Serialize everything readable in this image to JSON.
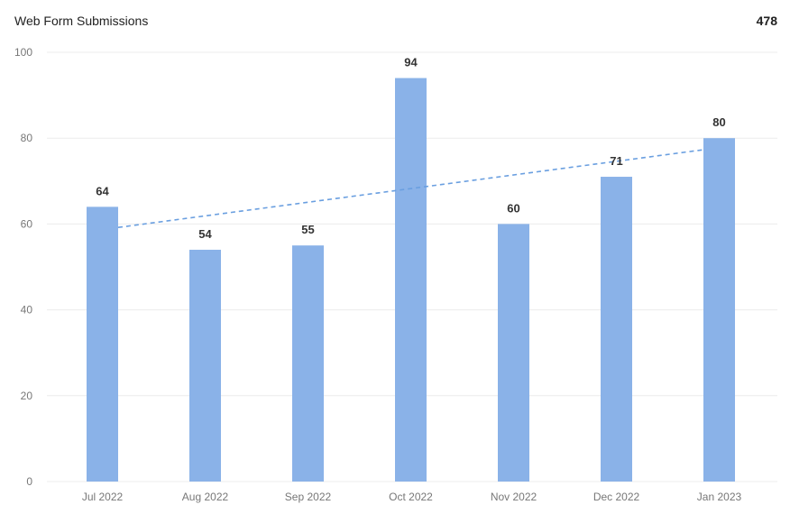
{
  "header": {
    "title": "Web Form Submissions",
    "total": "478"
  },
  "colors": {
    "bar": "#8ab2e8",
    "trend": "#6a9fe0",
    "grid": "#ececec",
    "axis_text": "#777777",
    "label_text": "#333333"
  },
  "chart_data": {
    "type": "bar",
    "title": "Web Form Submissions",
    "categories": [
      "Jul 2022",
      "Aug 2022",
      "Sep 2022",
      "Oct 2022",
      "Nov 2022",
      "Dec 2022",
      "Jan 2023"
    ],
    "values": [
      64,
      54,
      55,
      94,
      60,
      71,
      80
    ],
    "data_labels": [
      "64",
      "54",
      "55",
      "94",
      "60",
      "71",
      "80"
    ],
    "ylim": [
      0,
      100
    ],
    "yticks": [
      0,
      20,
      40,
      60,
      80,
      100
    ],
    "ytick_labels": [
      "0",
      "20",
      "40",
      "60",
      "80",
      "100"
    ],
    "grid": true,
    "trendline": {
      "style": "dashed",
      "start": 59.2,
      "end": 77.3
    }
  }
}
